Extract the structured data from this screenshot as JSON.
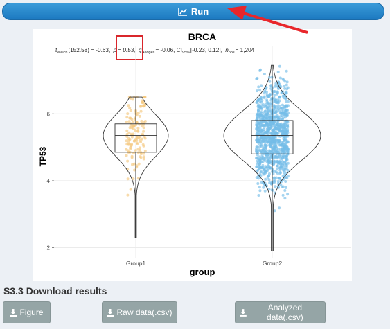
{
  "run_button": {
    "label": "Run",
    "icon": "line-chart-icon"
  },
  "section": {
    "title": "S3.3 Download results"
  },
  "downloads": {
    "figure_label": "Figure",
    "raw_label": "Raw data(.csv)",
    "analyzed_label": "Analyzed data(.csv)",
    "icon": "download-icon"
  },
  "chart_data": {
    "type": "violin",
    "title": "BRCA",
    "subtitle": {
      "stat": "t",
      "stat_sub": "Welch",
      "stat_value": "(152.58) = -0.63,",
      "p_label": "p = 0.53,",
      "effect": "g",
      "effect_sub": "Hedges",
      "effect_value": "= -0.06, CI",
      "ci_sub": "95%",
      "ci_value": "[-0.23, 0.12],",
      "n_label": "n",
      "n_sub": "obs",
      "n_value": "= 1,204"
    },
    "xlabel": "group",
    "ylabel": "TP53",
    "categories": [
      "Group1",
      "Group2"
    ],
    "ylim": [
      1.7,
      7.6
    ],
    "yticks": [
      2,
      4,
      6
    ],
    "grid": true,
    "groups": [
      {
        "name": "Group1",
        "color": "#f5c77e",
        "n": 140,
        "min": 2.3,
        "q1": 4.85,
        "median": 5.35,
        "q3": 5.7,
        "max": 6.5
      },
      {
        "name": "Group2",
        "color": "#74bde8",
        "n": 1064,
        "min": 1.9,
        "q1": 4.8,
        "median": 5.35,
        "q3": 5.8,
        "max": 7.45
      }
    ]
  },
  "colors": {
    "run_button": "#2a8ad0",
    "download_button": "#95a5a6",
    "highlight_box": "#d9262b",
    "annotation_arrow": "#e8262b"
  }
}
